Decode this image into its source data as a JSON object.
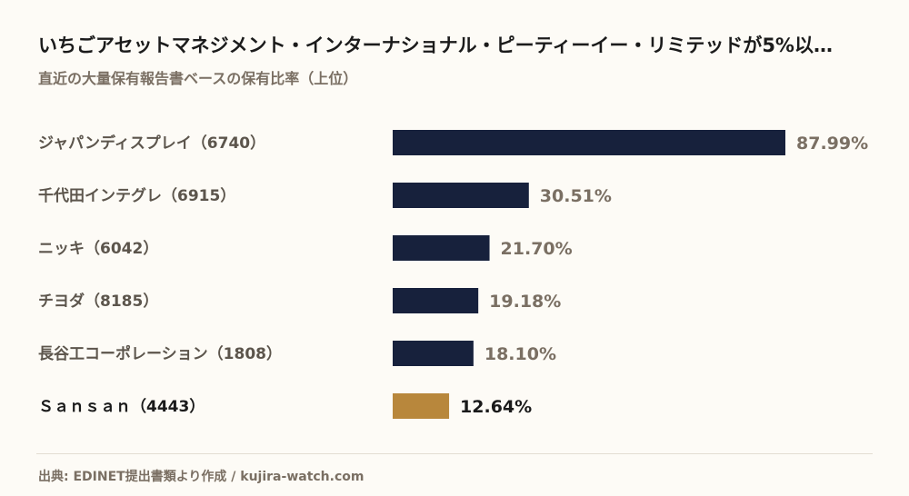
{
  "header": {
    "title": "いちごアセットマネジメント・インターナショナル・ピーティーイー・リミテッドが5%以…",
    "subtitle": "直近の大量保有報告書ベースの保有比率（上位）"
  },
  "footer": {
    "source": "出典: EDINET提出書類より作成 / kujira-watch.com"
  },
  "colors": {
    "bar": "#17213c",
    "highlight_bar": "#b8873c",
    "label": "#5c554c",
    "highlight_label": "#1a1a1a",
    "value": "#7a6f63",
    "highlight_value": "#1a1a1a"
  },
  "chart_data": {
    "type": "bar",
    "orientation": "horizontal",
    "categories": [
      "ジャパンディスプレイ（6740）",
      "千代田インテグレ（6915）",
      "ニッキ（6042）",
      "チヨダ（8185）",
      "長谷工コーポレーション（1808）",
      "Ｓａｎｓａｎ（4443）"
    ],
    "values": [
      87.99,
      30.51,
      21.7,
      19.18,
      18.1,
      12.64
    ],
    "value_labels": [
      "87.99%",
      "30.51%",
      "21.70%",
      "19.18%",
      "18.10%",
      "12.64%"
    ],
    "highlight_index": 5,
    "xlim": [
      0,
      87.99
    ],
    "grid": false,
    "legend": "none"
  }
}
